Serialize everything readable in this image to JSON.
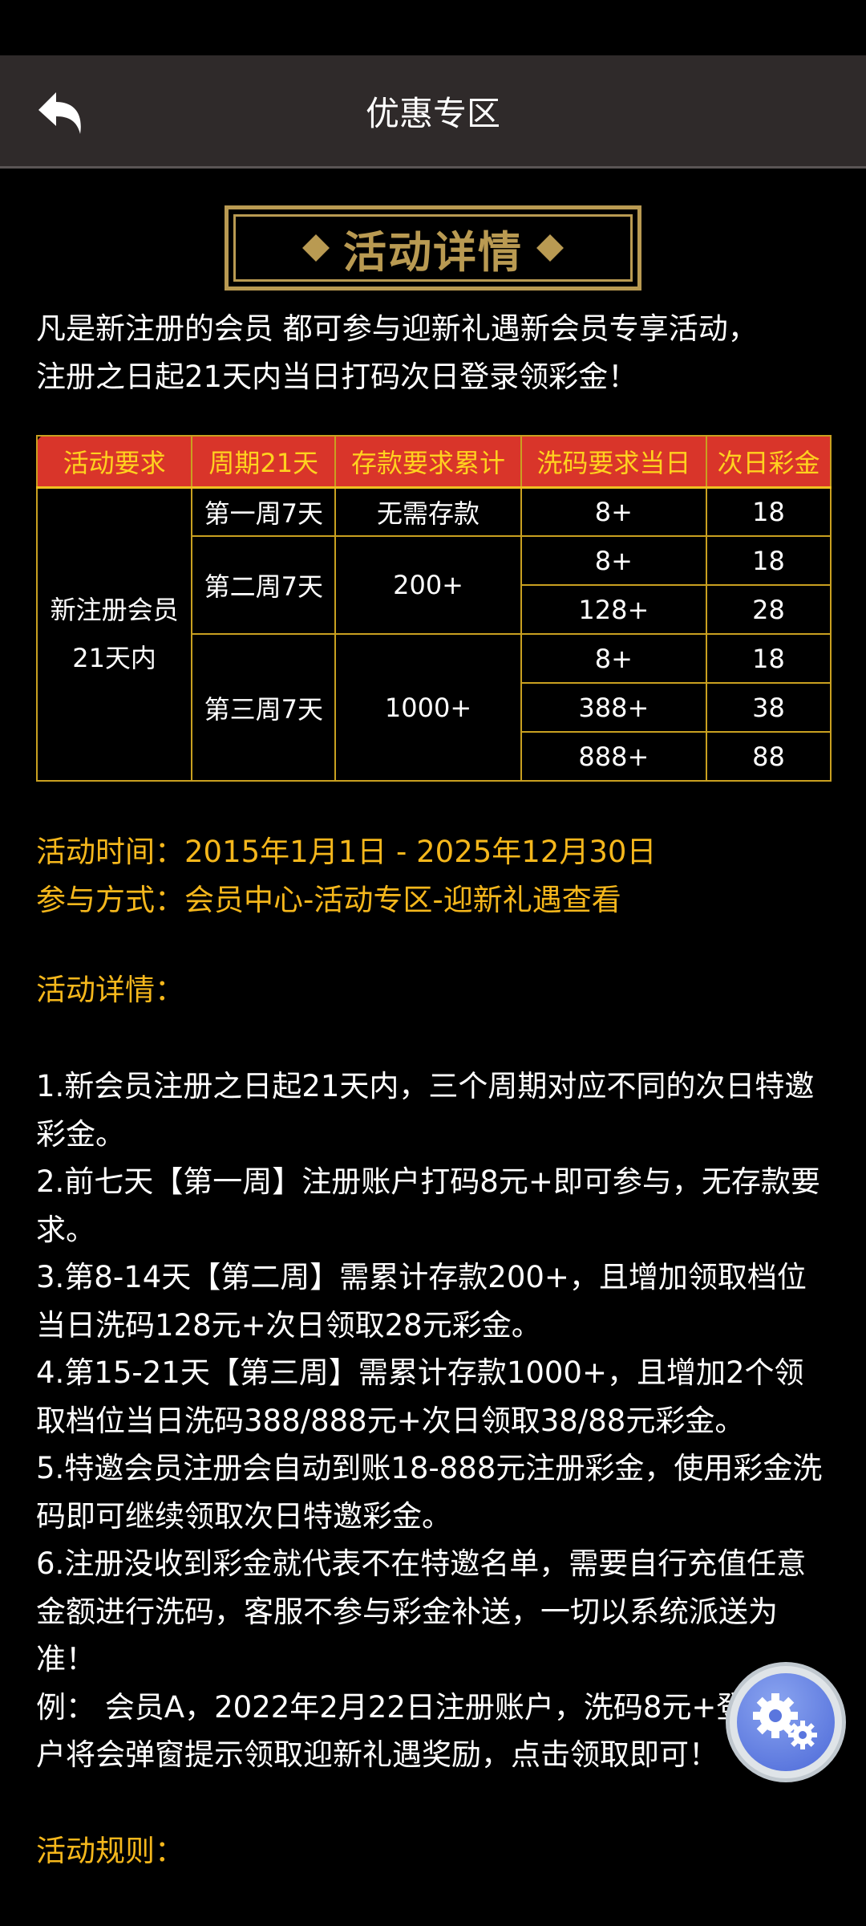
{
  "header": {
    "title": "优惠专区",
    "back_icon": "back-arrow-icon"
  },
  "badge": {
    "title": "活动详情"
  },
  "intro": [
    "凡是新注册的会员 都可参与迎新礼遇新会员专享活动，",
    "注册之日起21天内当日打码次日登录领彩金！"
  ],
  "table": {
    "headers": [
      "活动要求",
      "周期21天",
      "存款要求累计",
      "洗码要求当日",
      "次日彩金"
    ],
    "requirement": [
      "新注册会员",
      "21天内"
    ],
    "weeks": [
      {
        "period": "第一周7天",
        "deposit": "无需存款",
        "tiers": [
          [
            "8+",
            "18"
          ]
        ]
      },
      {
        "period": "第二周7天",
        "deposit": "200+",
        "tiers": [
          [
            "8+",
            "18"
          ],
          [
            "128+",
            "28"
          ]
        ]
      },
      {
        "period": "第三周7天",
        "deposit": "1000+",
        "tiers": [
          [
            "8+",
            "18"
          ],
          [
            "388+",
            "38"
          ],
          [
            "888+",
            "88"
          ]
        ]
      }
    ]
  },
  "info": {
    "time": "活动时间：2015年1月1日 - 2025年12月30日",
    "method": "参与方式：会员中心-活动专区-迎新礼遇查看",
    "details_title": "活动详情：",
    "rules_title": "活动规则："
  },
  "details": [
    "1.新会员注册之日起21天内，三个周期对应不同的次日特邀彩金。",
    "2.前七天【第一周】注册账户打码8元+即可参与，无存款要求。",
    "3.第8-14天【第二周】需累计存款200+，且增加领取档位当日洗码128元+次日领取28元彩金。",
    "4.第15-21天【第三周】需累计存款1000+，且增加2个领取档位当日洗码388/888元+次日领取38/88元彩金。",
    "5.特邀会员注册会自动到账18-888元注册彩金，使用彩金洗码即可继续领取次日特邀彩金。",
    "6.注册没收到彩金就代表不在特邀名单，需要自行充值任意金额进行洗码，客服不参与彩金补送，一切以系统派送为准！",
    "例： 会员A，2022年2月22日注册账户，洗码8元+登录账户将会弹窗提示领取迎新礼遇奖励，点击领取即可！"
  ],
  "colors": {
    "accent": "#f5b71c",
    "header_bg": "#2f2a2a",
    "table_header": "#d9352a",
    "border": "#c9a020"
  },
  "floating_button": {
    "icon": "settings-gears-icon"
  }
}
